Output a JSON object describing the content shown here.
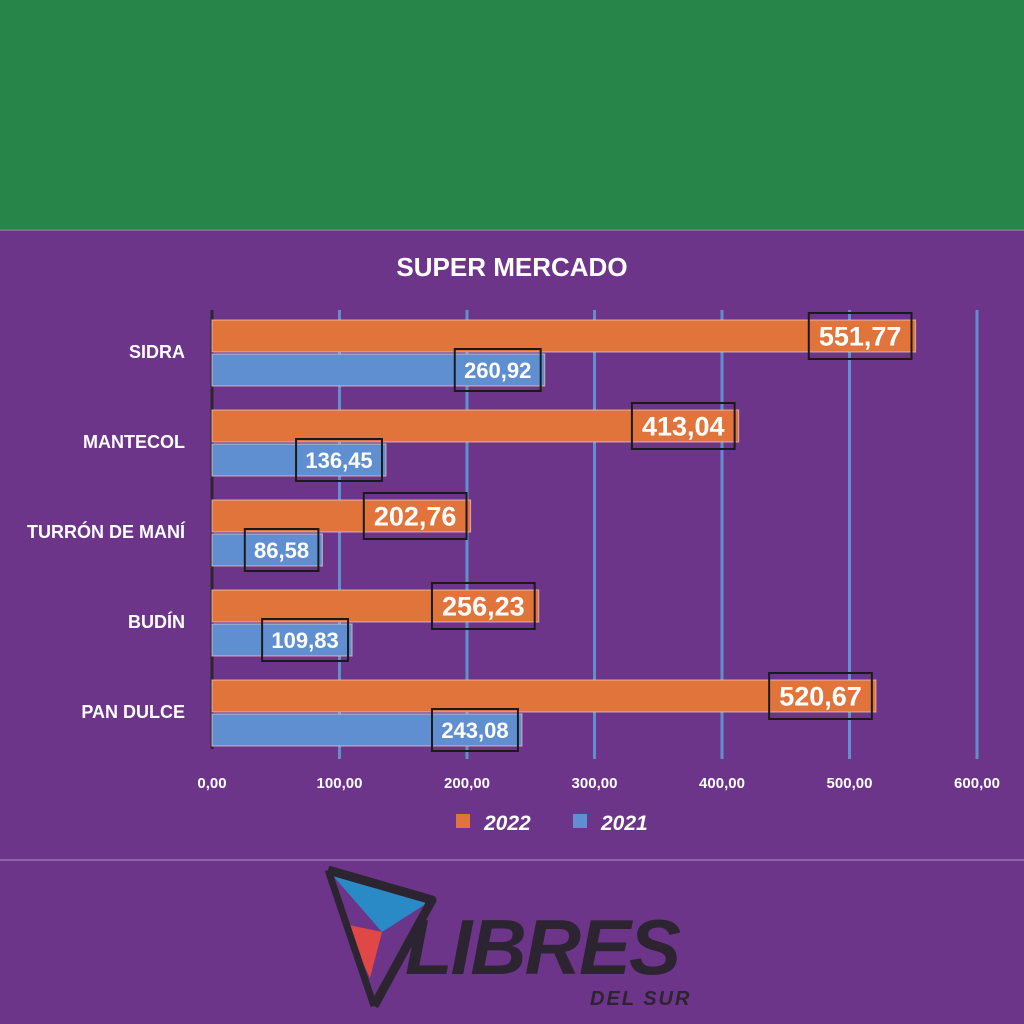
{
  "chart_data": {
    "type": "bar",
    "orientation": "horizontal",
    "title": "SUPER MERCADO",
    "categories": [
      "SIDRA",
      "MANTECOL",
      "TURRÓN DE MANÍ",
      "BUDÍN",
      "PAN DULCE"
    ],
    "series": [
      {
        "name": "2022",
        "color": "#e0743a",
        "values": [
          551.77,
          413.04,
          202.76,
          256.23,
          520.67
        ],
        "labels": [
          "551,77",
          "413,04",
          "202,76",
          "256,23",
          "520,67"
        ]
      },
      {
        "name": "2021",
        "color": "#5f8fd0",
        "values": [
          260.92,
          136.45,
          86.58,
          109.83,
          243.08
        ],
        "labels": [
          "260,92",
          "136,45",
          "86,58",
          "109,83",
          "243,08"
        ]
      }
    ],
    "xlim": [
      0,
      600
    ],
    "x_ticks": [
      "0,00",
      "100,00",
      "200,00",
      "300,00",
      "400,00",
      "500,00",
      "600,00"
    ],
    "grid": true,
    "legend_position": "bottom"
  },
  "logo": {
    "name": "LIBRES",
    "subtitle": "DEL SUR"
  }
}
